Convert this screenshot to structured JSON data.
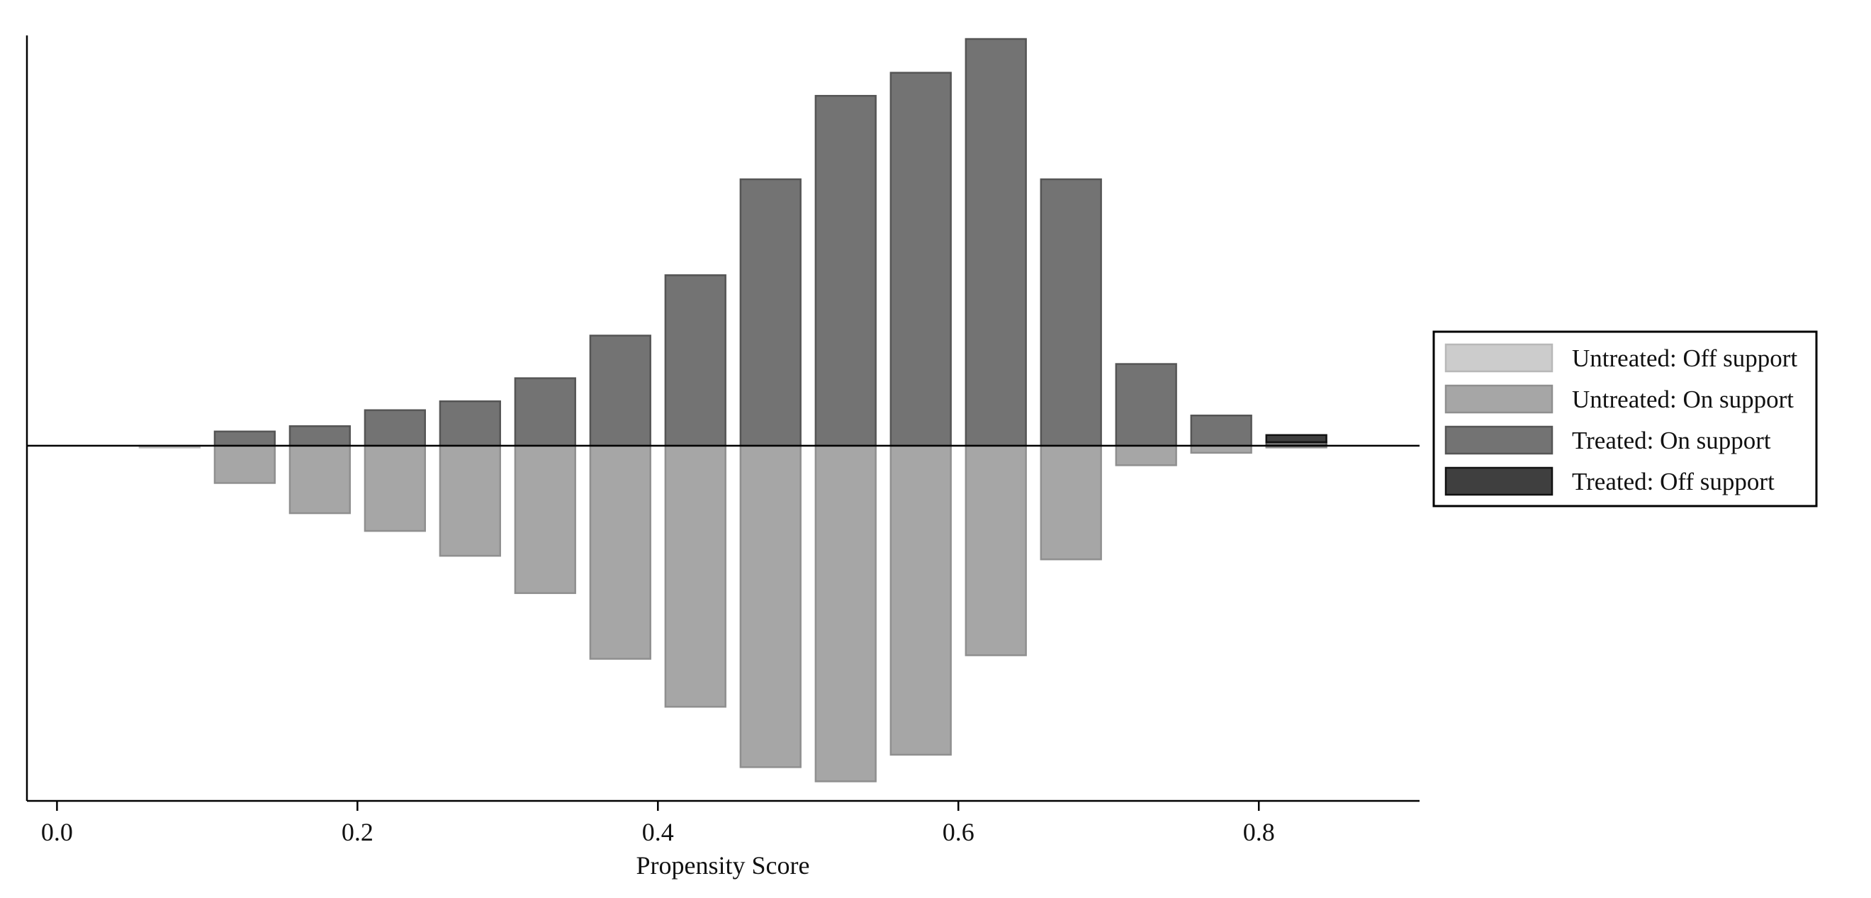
{
  "chart_data": {
    "type": "bar",
    "xlabel": "Propensity Score",
    "ylabel": "",
    "title": "",
    "xlim": [
      -0.02,
      0.907
    ],
    "ylim": [
      -0.2,
      0.231
    ],
    "xticks": [
      {
        "value": 0.0,
        "label": "0.0"
      },
      {
        "value": 0.2,
        "label": "0.2"
      },
      {
        "value": 0.4,
        "label": "0.4"
      },
      {
        "value": 0.6,
        "label": "0.6"
      },
      {
        "value": 0.8,
        "label": "0.8"
      }
    ],
    "bar_width": 0.04,
    "bins": [
      0.075,
      0.125,
      0.175,
      0.225,
      0.275,
      0.325,
      0.375,
      0.425,
      0.475,
      0.525,
      0.575,
      0.625,
      0.675,
      0.725,
      0.775,
      0.825
    ],
    "series": [
      {
        "name": "Untreated: Off support",
        "direction": "down",
        "color": "#cccccc",
        "edge": "#b8b8b8",
        "values": [
          0.001,
          0,
          0,
          0,
          0,
          0,
          0,
          0,
          0,
          0,
          0,
          0,
          0,
          0,
          0,
          0
        ]
      },
      {
        "name": "Untreated: On support",
        "direction": "down",
        "color": "#a6a6a6",
        "edge": "#8f8f8f",
        "values": [
          0,
          0.021,
          0.038,
          0.048,
          0.062,
          0.083,
          0.12,
          0.147,
          0.181,
          0.189,
          0.174,
          0.118,
          0.064,
          0.011,
          0.004,
          0.001
        ]
      },
      {
        "name": "Treated: On support",
        "direction": "up",
        "color": "#737373",
        "edge": "#555555",
        "values": [
          0,
          0.008,
          0.011,
          0.02,
          0.025,
          0.038,
          0.062,
          0.096,
          0.15,
          0.197,
          0.21,
          0.229,
          0.15,
          0.046,
          0.017,
          0.002
        ]
      },
      {
        "name": "Treated: Off support",
        "direction": "up",
        "color": "#3f3f3f",
        "edge": "#111111",
        "values": [
          0,
          0,
          0,
          0,
          0,
          0,
          0,
          0,
          0,
          0,
          0,
          0,
          0,
          0,
          0,
          0.004
        ]
      }
    ],
    "legend": {
      "placement": "right",
      "entries": [
        "Untreated: Off support",
        "Untreated: On support",
        "Treated: On support",
        "Treated: Off support"
      ]
    },
    "grid": false
  }
}
